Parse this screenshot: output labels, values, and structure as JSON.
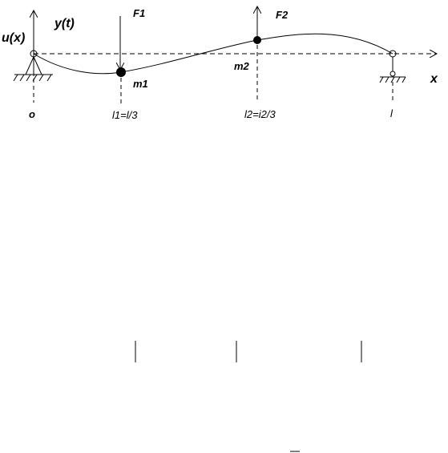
{
  "labels": {
    "u": "u(x)",
    "y": "y(t)",
    "f1": "F1",
    "f2": "F2",
    "m1": "m1",
    "m2": "m2",
    "x": "x",
    "origin": "o",
    "l1": "l1=l/3",
    "l2": "l2=i2/3",
    "l": "l"
  }
}
